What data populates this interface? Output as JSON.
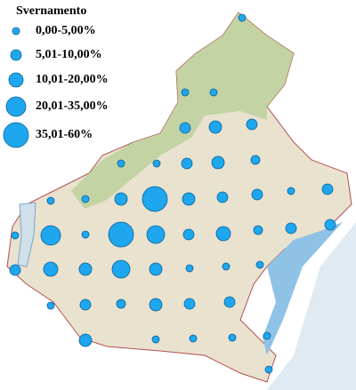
{
  "legend": {
    "title": "Svernamento",
    "items": [
      "0,00-5,00%",
      "5,01-10,00%",
      "10,01-20,00%",
      "20,01-35,00%",
      "35,01-60%"
    ]
  }
}
